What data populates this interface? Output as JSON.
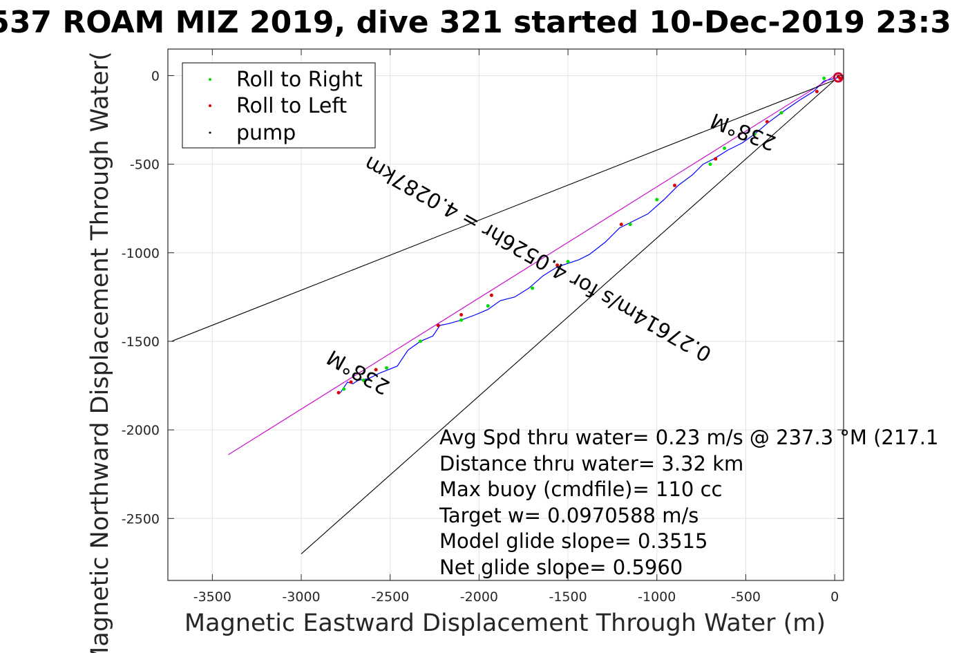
{
  "chart_data": {
    "type": "line",
    "title": "537 ROAM MIZ 2019, dive 321 started 10-Dec-2019 23:3",
    "xlabel": "Magnetic Eastward Displacement Through Water (m)",
    "ylabel": "Magnetic Northward Displacement Through Water(",
    "xlim": [
      -3750,
      50
    ],
    "ylim": [
      -2850,
      150
    ],
    "xticks": [
      "-3500",
      "-3000",
      "-2500",
      "-2000",
      "-1500",
      "-1000",
      "-500",
      "0"
    ],
    "xtick_values": [
      -3500,
      -3000,
      -2500,
      -2000,
      -1500,
      -1000,
      -500,
      0
    ],
    "yticks": [
      "0",
      "-500",
      "-1000",
      "-1500",
      "-2000",
      "-2500"
    ],
    "ytick_values": [
      0,
      -500,
      -1000,
      -1500,
      -2000,
      -2500
    ],
    "grid": true,
    "legend": {
      "placement": "top-left",
      "entries": [
        {
          "label": "Roll to Right",
          "color": "#00dd00"
        },
        {
          "label": "Roll to Left",
          "color": "#dd0000"
        },
        {
          "label": "pump",
          "color": "#000000"
        }
      ]
    },
    "series": [
      {
        "color": "#0000ff",
        "x": [
          25,
          -60,
          -120,
          -200,
          -300,
          -380,
          -450,
          -520,
          -600,
          -680,
          -740,
          -800,
          -880,
          -960,
          -1050,
          -1130,
          -1210,
          -1290,
          -1380,
          -1440,
          -1500,
          -1560,
          -1640,
          -1720,
          -1800,
          -1880,
          -1950,
          -2020,
          -2100,
          -2170,
          -2220,
          -2260,
          -2330,
          -2400,
          -2460,
          -2510,
          -2560,
          -2620,
          -2680,
          -2710,
          -2740,
          -2760,
          -2780
        ],
        "y": [
          -10,
          -30,
          -90,
          -140,
          -210,
          -270,
          -330,
          -380,
          -420,
          -470,
          -500,
          -560,
          -620,
          -700,
          -780,
          -820,
          -860,
          -940,
          -1010,
          -1040,
          -1060,
          -1080,
          -1130,
          -1200,
          -1250,
          -1270,
          -1320,
          -1350,
          -1380,
          -1400,
          -1410,
          -1470,
          -1500,
          -1550,
          -1640,
          -1660,
          -1680,
          -1710,
          -1720,
          -1740,
          -1730,
          -1760,
          -1790
        ]
      },
      {
        "color": "#cc00cc",
        "x": [
          0,
          -3410
        ],
        "y": [
          0,
          -2140
        ]
      },
      {
        "color": "#000000",
        "x": [
          0,
          -3730
        ],
        "y": [
          -25,
          -1500
        ]
      },
      {
        "color": "#000000",
        "x": [
          0,
          -3000
        ],
        "y": [
          -25,
          -2700
        ]
      }
    ],
    "roll_right_points": {
      "x": [
        -60,
        -300,
        -450,
        -620,
        -700,
        -1000,
        -1150,
        -1500,
        -1700,
        -1950,
        -2100,
        -2330,
        -2520,
        -2650,
        -2760
      ],
      "y": [
        -15,
        -210,
        -330,
        -410,
        -500,
        -700,
        -840,
        -1050,
        -1200,
        -1300,
        -1380,
        -1500,
        -1650,
        -1720,
        -1770
      ]
    },
    "roll_left_points": {
      "x": [
        20,
        30,
        -100,
        -380,
        -670,
        -900,
        -1200,
        -1560,
        -1930,
        -2100,
        -2230,
        -2580,
        -2720,
        -2790
      ],
      "y": [
        -5,
        -15,
        -90,
        -260,
        -470,
        -620,
        -840,
        -1070,
        -1240,
        -1350,
        -1410,
        -1660,
        -1730,
        -1790
      ]
    },
    "annotations": [
      {
        "text": "238°M",
        "x": -500,
        "y": -280,
        "rotation": 201.4
      },
      {
        "text": "0.27614m/s for 4.0526hr = 4.0287km",
        "x": -1650,
        "y": -1000,
        "rotation": 209.5
      },
      {
        "text": "238°M",
        "x": -2660,
        "y": -1640,
        "rotation": 209.5
      }
    ],
    "stats": [
      "Avg Spd thru water=  0.23 m/s @ 237.3 °M (217.1",
      "Distance thru water=  3.32 km",
      "Max buoy (cmdfile)= 110 cc",
      "Target w= 0.0970588 m/s",
      "Model glide slope= 0.3515",
      "Net glide slope= 0.5960"
    ]
  }
}
